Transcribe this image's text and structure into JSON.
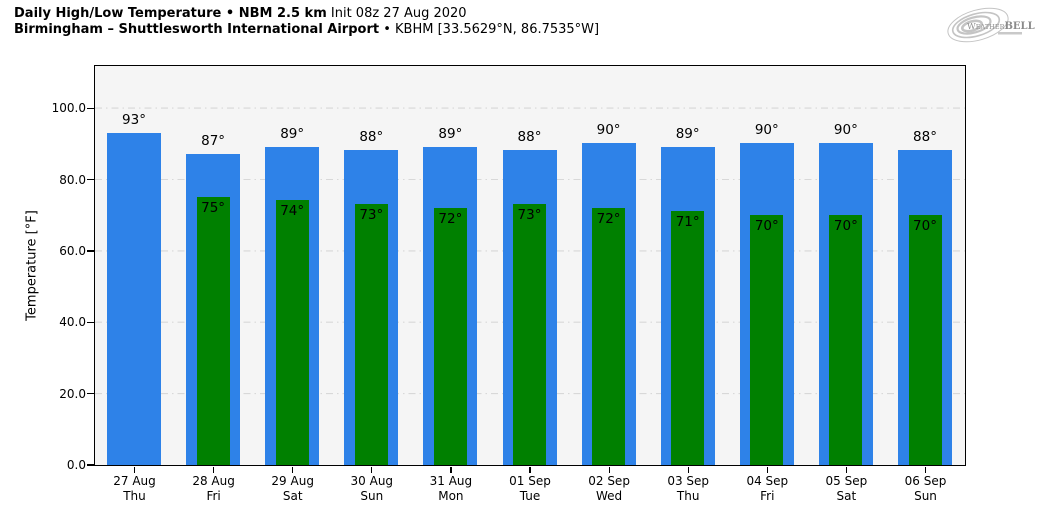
{
  "header": {
    "line1_bold": "Daily High/Low Temperature • NBM 2.5 km",
    "line1_regular": "Init 08z 27 Aug 2020",
    "line2_bold": "Birmingham – Shuttlesworth International Airport",
    "line2_regular": "• KBHM [33.5629°N, 86.7535°W]"
  },
  "logo": {
    "name": "WeatherBELL",
    "text_weather": "Weather",
    "text_bell": "BELL",
    "color": "#b5b5b5"
  },
  "colors": {
    "figure_bg": "#ffffff",
    "plot_bg": "#f5f5f5",
    "grid": "#d8d8d8",
    "axis": "#000000",
    "high_bar": "#2E82E8",
    "low_bar": "#008000",
    "text": "#000000"
  },
  "chart_data": {
    "type": "bar",
    "title": "Daily High/Low Temperature • NBM 2.5 km",
    "init_label": "Init 08z 27 Aug 2020",
    "location": "Birmingham – Shuttlesworth International Airport",
    "station": "KBHM [33.5629°N, 86.7535°W]",
    "xlabel": "",
    "ylabel": "Temperature [°F]",
    "ylim": [
      0,
      112
    ],
    "yticks": [
      0,
      20,
      40,
      60,
      80,
      100
    ],
    "ytick_labels": [
      "0.0",
      "20.0",
      "40.0",
      "60.0",
      "80.0",
      "100.0"
    ],
    "grid": "horizontal dash-dot light gray",
    "legend_position": "none",
    "bar_label_suffix": "°",
    "categories": [
      "27 Aug",
      "28 Aug",
      "29 Aug",
      "30 Aug",
      "31 Aug",
      "01 Sep",
      "02 Sep",
      "03 Sep",
      "04 Sep",
      "05 Sep",
      "06 Sep"
    ],
    "weekdays": [
      "Thu",
      "Fri",
      "Sat",
      "Sun",
      "Mon",
      "Tue",
      "Wed",
      "Thu",
      "Fri",
      "Sat",
      "Sun"
    ],
    "series": [
      {
        "name": "High",
        "color": "#2E82E8",
        "values": [
          93,
          87,
          89,
          88,
          89,
          88,
          90,
          89,
          90,
          90,
          88
        ]
      },
      {
        "name": "Low",
        "color": "#008000",
        "values": [
          null,
          75,
          74,
          73,
          72,
          73,
          72,
          71,
          70,
          70,
          70
        ]
      }
    ]
  }
}
